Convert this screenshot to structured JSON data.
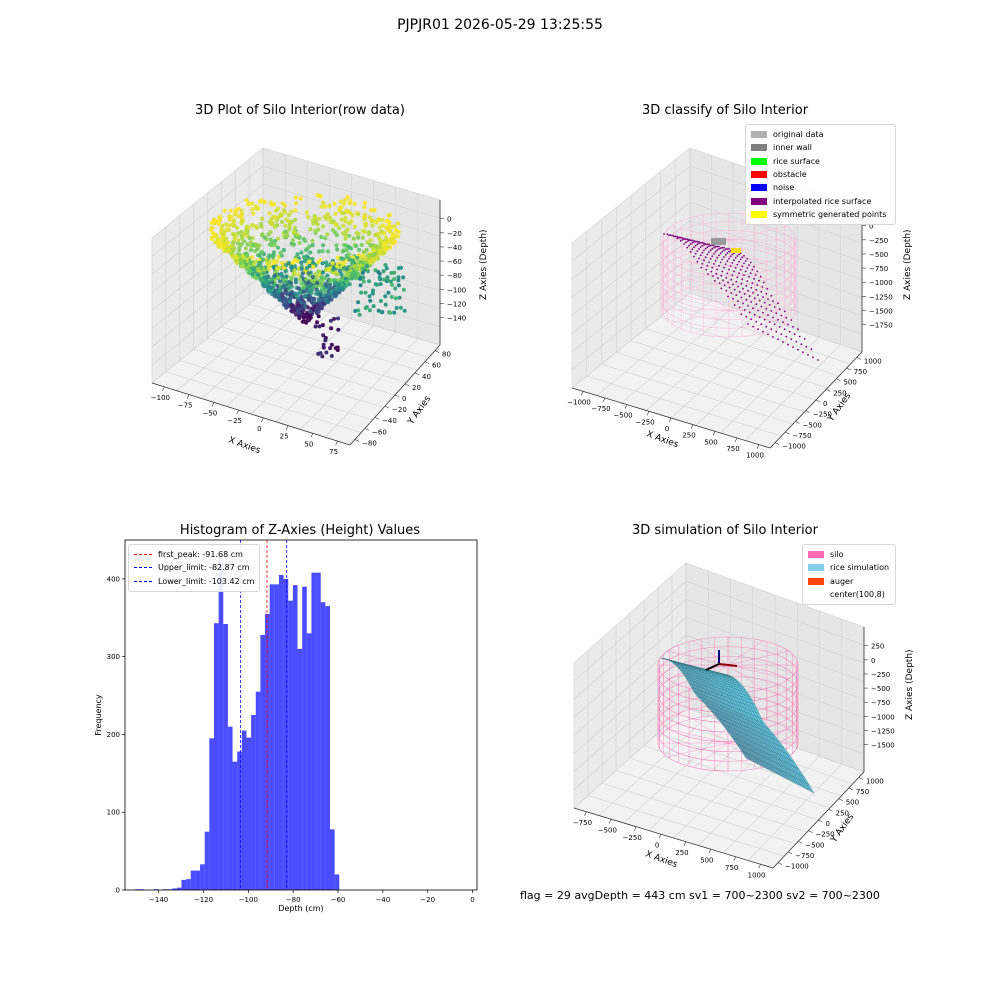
{
  "header": {
    "title": "PJPJR01 2026-05-29 13:25:55"
  },
  "panels": {
    "raw": {
      "title": "3D Plot of Silo Interior(row data)",
      "xlabel": "X Axies",
      "ylabel": "Y Axies",
      "zlabel": "Z Axies (Depth)",
      "xticks": [
        "−100",
        "−75",
        "−50",
        "−25",
        "0",
        "25",
        "50",
        "75"
      ],
      "yticks": [
        "80",
        "60",
        "40",
        "20",
        "0",
        "−20",
        "−40",
        "−60",
        "−80"
      ],
      "zticks": [
        "0",
        "−20",
        "−40",
        "−60",
        "−80",
        "−100",
        "−120",
        "−140"
      ]
    },
    "classify": {
      "title": "3D classify of Silo Interior",
      "xlabel": "X Axies",
      "ylabel": "Y Axies",
      "zlabel": "Z Axies (Depth)",
      "xticks": [
        "−1000",
        "−750",
        "−500",
        "−250",
        "0",
        "250",
        "500",
        "750",
        "1000"
      ],
      "yticks": [
        "1000",
        "750",
        "500",
        "250",
        "0",
        "−250",
        "−500",
        "−750",
        "−1000"
      ],
      "zticks": [
        "0",
        "−250",
        "−500",
        "−750",
        "−1000",
        "−1250",
        "−1500",
        "−1750"
      ],
      "legend": [
        {
          "label": "original data",
          "color": "#b0b0b0"
        },
        {
          "label": "inner wall",
          "color": "#808080"
        },
        {
          "label": "rice surface",
          "color": "#00ff00"
        },
        {
          "label": "obstacle",
          "color": "#ff0000"
        },
        {
          "label": "noise",
          "color": "#0000ff"
        },
        {
          "label": "interpolated rice surface",
          "color": "#800080"
        },
        {
          "label": "symmetric generated points",
          "color": "#ffff00"
        }
      ]
    },
    "simulation": {
      "title": "3D simulation of Silo Interior",
      "xlabel": "X Axies",
      "ylabel": "Y Axies",
      "zlabel": "Z Axies (Depth)",
      "xticks": [
        "−750",
        "−500",
        "−250",
        "0",
        "250",
        "500",
        "750",
        "1000"
      ],
      "yticks": [
        "1000",
        "750",
        "500",
        "250",
        "0",
        "−250",
        "−500",
        "−750",
        "−1000"
      ],
      "zticks": [
        "250",
        "0",
        "−250",
        "−500",
        "−750",
        "−1000",
        "−1250",
        "−1500"
      ],
      "legend": [
        {
          "label": "silo",
          "color": "#ff69b4"
        },
        {
          "label": "rice simulation",
          "color": "#87ceeb"
        },
        {
          "label": "auger",
          "color": "#ff4500"
        },
        {
          "label": "center(100,8)",
          "color": "none"
        }
      ]
    }
  },
  "footer": {
    "text": "flag = 29  avgDepth = 443 cm  sv1 = 700~2300  sv2 = 700~2300"
  },
  "chart_data": [
    {
      "type": "bar",
      "title": "Histogram of Z-Axies (Height) Values",
      "xlabel": "Depth (cm)",
      "ylabel": "Frequency",
      "xlim": [
        -155,
        2
      ],
      "ylim": [
        0,
        450
      ],
      "xticks": [
        -140,
        -120,
        -100,
        -80,
        -60,
        -40,
        -20,
        0
      ],
      "yticks": [
        0,
        100,
        200,
        300,
        400
      ],
      "bar_color": "#0000ff",
      "bin_width": 2.07,
      "bin_left": -150.5,
      "values": [
        1,
        1,
        0,
        0,
        1,
        0,
        1,
        1,
        2,
        3,
        13,
        14,
        25,
        25,
        33,
        75,
        195,
        343,
        430,
        342,
        210,
        165,
        178,
        205,
        196,
        225,
        255,
        328,
        355,
        393,
        393,
        405,
        400,
        372,
        392,
        310,
        390,
        330,
        408,
        408,
        370,
        365,
        78,
        20
      ],
      "reference_lines": [
        {
          "name": "first_peak: -91.68 cm",
          "x": -91.68,
          "color": "#ff0000"
        },
        {
          "name": "Upper_limit: -82.87 cm",
          "x": -82.87,
          "color": "#0000ff"
        },
        {
          "name": "Lower_limit: -103.42 cm",
          "x": -103.42,
          "color": "#0000ff"
        }
      ],
      "legend_position": "top-left"
    },
    {
      "type": "scatter",
      "title": "3D Plot of Silo Interior(row data)",
      "xlim": [
        -110,
        85
      ],
      "ylim": [
        -80,
        85
      ],
      "zlim": [
        -150,
        5
      ],
      "colormap": "viridis",
      "grid": true
    },
    {
      "type": "scatter",
      "title": "3D classify of Silo Interior",
      "xlim": [
        -1000,
        1000
      ],
      "ylim": [
        -1000,
        1000
      ],
      "zlim": [
        -1800,
        100
      ],
      "grid": true
    },
    {
      "type": "area",
      "title": "3D simulation of Silo Interior",
      "xlim": [
        -850,
        1000
      ],
      "ylim": [
        -1000,
        1000
      ],
      "zlim": [
        -1600,
        300
      ],
      "grid": true
    }
  ]
}
